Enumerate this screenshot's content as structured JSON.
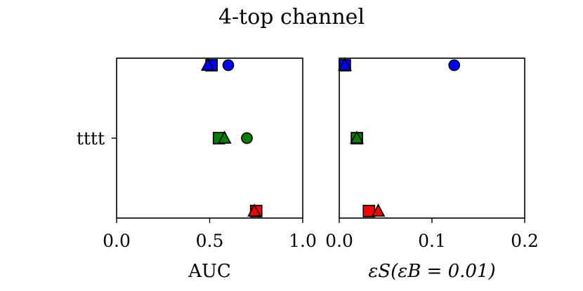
{
  "chart_data": {
    "title": "4-top channel",
    "type": "scatter",
    "category_label": "tttt",
    "panels": [
      {
        "xlabel": "AUC",
        "xlim": [
          0.0,
          1.0
        ],
        "xticks": [
          "0.0",
          "0.5",
          "1.0"
        ],
        "tick_values": [
          0.0,
          0.5,
          1.0
        ],
        "series": [
          {
            "color": "#0000ff",
            "points": [
              {
                "x": 0.49,
                "marker": "triangle"
              },
              {
                "x": 0.51,
                "marker": "square"
              },
              {
                "x": 0.6,
                "marker": "circle"
              }
            ]
          },
          {
            "color": "#008000",
            "points": [
              {
                "x": 0.55,
                "marker": "square"
              },
              {
                "x": 0.58,
                "marker": "triangle"
              },
              {
                "x": 0.7,
                "marker": "circle"
              }
            ]
          },
          {
            "color": "#ff0000",
            "points": [
              {
                "x": 0.75,
                "marker": "square"
              },
              {
                "x": 0.74,
                "marker": "triangle"
              }
            ]
          }
        ]
      },
      {
        "xlabel": "εS(εB = 0.01)",
        "xlim": [
          0.0,
          0.2
        ],
        "xticks": [
          "0.0",
          "0.1",
          "0.2"
        ],
        "tick_values": [
          0.0,
          0.1,
          0.2
        ],
        "series": [
          {
            "color": "#0000ff",
            "points": [
              {
                "x": 0.006,
                "marker": "square"
              },
              {
                "x": 0.006,
                "marker": "triangle"
              },
              {
                "x": 0.124,
                "marker": "circle"
              }
            ]
          },
          {
            "color": "#008000",
            "points": [
              {
                "x": 0.019,
                "marker": "square"
              },
              {
                "x": 0.019,
                "marker": "triangle"
              }
            ]
          },
          {
            "color": "#ff0000",
            "points": [
              {
                "x": 0.032,
                "marker": "square"
              },
              {
                "x": 0.042,
                "marker": "triangle"
              }
            ]
          }
        ]
      }
    ]
  }
}
